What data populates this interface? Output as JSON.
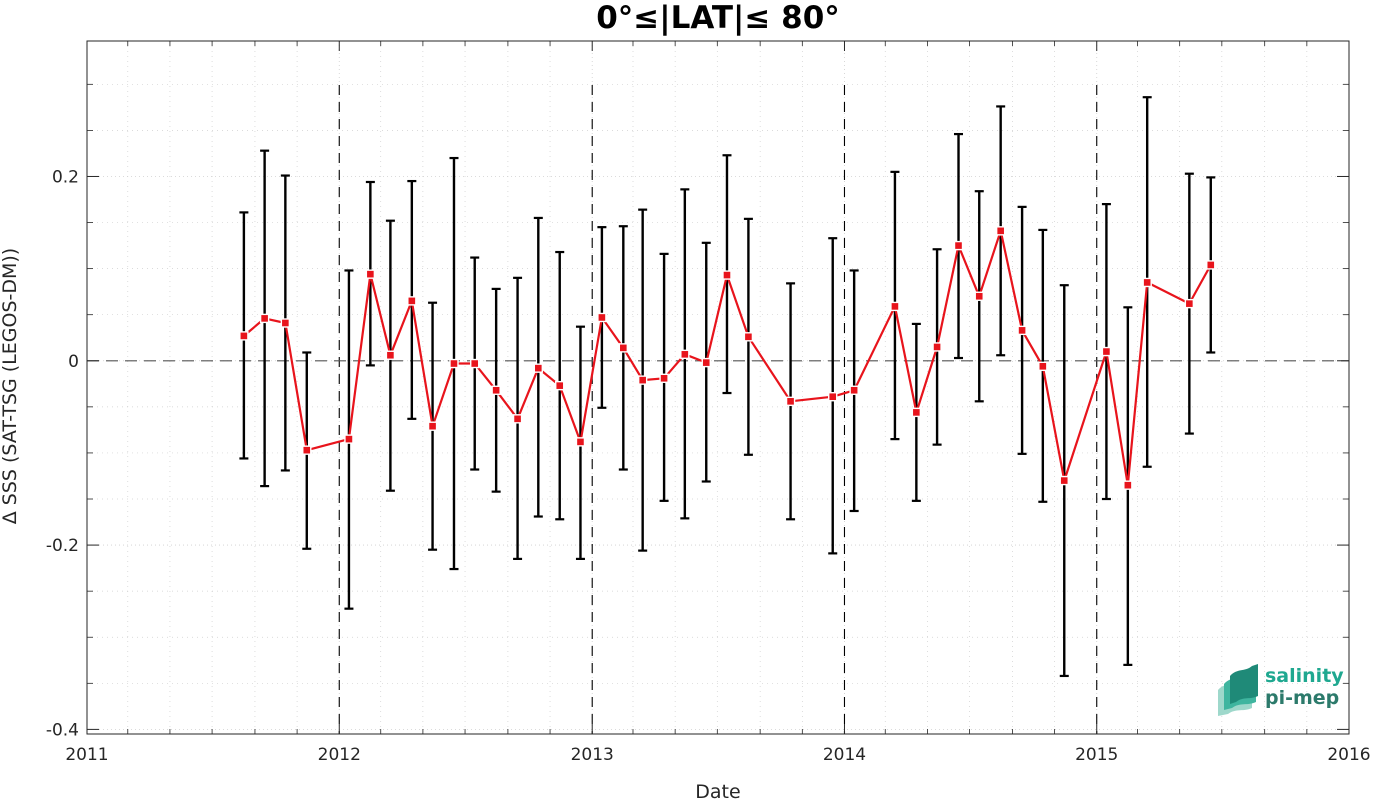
{
  "chart_data": {
    "type": "line",
    "title": "0°≤|LAT|≤ 80°",
    "xlabel": "Date",
    "ylabel": "Δ SSS (SAT-TSG (LEGOS-DM))",
    "x_ticks": [
      "2011",
      "2012",
      "2013",
      "2014",
      "2015",
      "2016"
    ],
    "y_ticks": [
      "0.2",
      "0",
      "-0.2",
      "-0.4"
    ],
    "xlim": [
      "2011-01-01",
      "2016-01-01"
    ],
    "ylim": [
      -0.405,
      0.347
    ],
    "grid": true,
    "series": [
      {
        "color": "#e8141c",
        "marker": "square",
        "points": [
          {
            "date": "2011-08-16",
            "y": 0.027,
            "lo": -0.106,
            "hi": 0.161
          },
          {
            "date": "2011-09-15",
            "y": 0.046,
            "lo": -0.136,
            "hi": 0.228
          },
          {
            "date": "2011-10-15",
            "y": 0.041,
            "lo": -0.119,
            "hi": 0.201
          },
          {
            "date": "2011-11-15",
            "y": -0.097,
            "lo": -0.204,
            "hi": 0.009
          },
          {
            "date": "2012-01-15",
            "y": -0.085,
            "lo": -0.269,
            "hi": 0.098
          },
          {
            "date": "2012-02-15",
            "y": 0.094,
            "lo": -0.005,
            "hi": 0.194
          },
          {
            "date": "2012-03-15",
            "y": 0.006,
            "lo": -0.141,
            "hi": 0.152
          },
          {
            "date": "2012-04-15",
            "y": 0.065,
            "lo": -0.063,
            "hi": 0.195
          },
          {
            "date": "2012-05-15",
            "y": -0.071,
            "lo": -0.205,
            "hi": 0.063
          },
          {
            "date": "2012-06-15",
            "y": -0.003,
            "lo": -0.226,
            "hi": 0.22
          },
          {
            "date": "2012-07-15",
            "y": -0.003,
            "lo": -0.118,
            "hi": 0.112
          },
          {
            "date": "2012-08-15",
            "y": -0.032,
            "lo": -0.142,
            "hi": 0.078
          },
          {
            "date": "2012-09-15",
            "y": -0.063,
            "lo": -0.215,
            "hi": 0.09
          },
          {
            "date": "2012-10-15",
            "y": -0.008,
            "lo": -0.169,
            "hi": 0.155
          },
          {
            "date": "2012-11-15",
            "y": -0.027,
            "lo": -0.172,
            "hi": 0.118
          },
          {
            "date": "2012-12-15",
            "y": -0.088,
            "lo": -0.215,
            "hi": 0.037
          },
          {
            "date": "2013-01-15",
            "y": 0.047,
            "lo": -0.051,
            "hi": 0.145
          },
          {
            "date": "2013-02-15",
            "y": 0.014,
            "lo": -0.118,
            "hi": 0.146
          },
          {
            "date": "2013-03-15",
            "y": -0.021,
            "lo": -0.206,
            "hi": 0.164
          },
          {
            "date": "2013-04-15",
            "y": -0.019,
            "lo": -0.152,
            "hi": 0.116
          },
          {
            "date": "2013-05-15",
            "y": 0.007,
            "lo": -0.171,
            "hi": 0.186
          },
          {
            "date": "2013-06-15",
            "y": -0.002,
            "lo": -0.131,
            "hi": 0.128
          },
          {
            "date": "2013-07-15",
            "y": 0.093,
            "lo": -0.035,
            "hi": 0.223
          },
          {
            "date": "2013-08-15",
            "y": 0.026,
            "lo": -0.102,
            "hi": 0.154
          },
          {
            "date": "2013-10-15",
            "y": -0.044,
            "lo": -0.172,
            "hi": 0.084
          },
          {
            "date": "2013-12-15",
            "y": -0.039,
            "lo": -0.209,
            "hi": 0.133
          },
          {
            "date": "2014-01-15",
            "y": -0.032,
            "lo": -0.163,
            "hi": 0.098
          },
          {
            "date": "2014-03-15",
            "y": 0.059,
            "lo": -0.085,
            "hi": 0.205
          },
          {
            "date": "2014-04-15",
            "y": -0.056,
            "lo": -0.152,
            "hi": 0.04
          },
          {
            "date": "2014-05-15",
            "y": 0.015,
            "lo": -0.091,
            "hi": 0.121
          },
          {
            "date": "2014-06-15",
            "y": 0.125,
            "lo": 0.003,
            "hi": 0.246
          },
          {
            "date": "2014-07-15",
            "y": 0.07,
            "lo": -0.044,
            "hi": 0.184
          },
          {
            "date": "2014-08-15",
            "y": 0.141,
            "lo": 0.006,
            "hi": 0.276
          },
          {
            "date": "2014-09-15",
            "y": 0.033,
            "lo": -0.101,
            "hi": 0.167
          },
          {
            "date": "2014-10-15",
            "y": -0.006,
            "lo": -0.153,
            "hi": 0.142
          },
          {
            "date": "2014-11-15",
            "y": -0.13,
            "lo": -0.342,
            "hi": 0.082
          },
          {
            "date": "2015-01-15",
            "y": 0.01,
            "lo": -0.15,
            "hi": 0.17
          },
          {
            "date": "2015-02-15",
            "y": -0.135,
            "lo": -0.33,
            "hi": 0.058
          },
          {
            "date": "2015-03-15",
            "y": 0.085,
            "lo": -0.115,
            "hi": 0.286
          },
          {
            "date": "2015-05-15",
            "y": 0.062,
            "lo": -0.079,
            "hi": 0.203
          },
          {
            "date": "2015-06-15",
            "y": 0.104,
            "lo": 0.009,
            "hi": 0.199
          }
        ]
      }
    ]
  },
  "logo": {
    "line1": "salinity",
    "line2": "pi-mep",
    "colors": [
      "#1fa890",
      "#2c7a6b"
    ],
    "icon": "wave-layers-icon"
  },
  "colors": {
    "series": "#e8141c",
    "errorbar": "#000000",
    "grid": "#cfcfcf",
    "zero_line": "#555555",
    "year_divider": "#000000"
  }
}
